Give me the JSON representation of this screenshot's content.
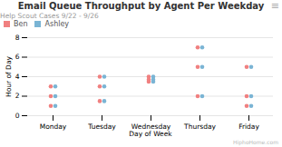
{
  "chart_data": {
    "type": "scatter",
    "title": "Email Queue Throughput by Agent Per Weekday",
    "subtitle": "Help Scout Cases 9/22 - 9/26",
    "xlabel": "Day of Week",
    "ylabel": "Hour of Day",
    "annotations": [
      "HiphoHome.com",
      "≡"
    ],
    "categories": [
      "Monday",
      "Tuesday",
      "Wednesday",
      "Thursday",
      "Friday"
    ],
    "series": [
      {
        "name": "Ben",
        "color": "#f08080",
        "x": [
          "Monday",
          "Monday",
          "Monday",
          "Tuesday",
          "Tuesday",
          "Tuesday",
          "Wednesday",
          "Wednesday",
          "Wednesday",
          "Thursday",
          "Thursday",
          "Thursday",
          "Friday",
          "Friday",
          "Friday"
        ],
        "values": [
          1,
          2,
          3,
          1.5,
          3,
          4,
          3.5,
          4,
          3.7,
          2,
          5,
          7,
          1,
          2,
          5
        ]
      },
      {
        "name": "Ashley",
        "color": "#7ab4d4",
        "x": [
          "Monday",
          "Monday",
          "Monday",
          "Tuesday",
          "Tuesday",
          "Tuesday",
          "Wednesday",
          "Wednesday",
          "Wednesday",
          "Thursday",
          "Thursday",
          "Thursday",
          "Friday",
          "Friday",
          "Friday"
        ],
        "values": [
          1,
          2,
          3,
          1.5,
          3,
          4,
          3.5,
          4,
          3.7,
          2,
          5,
          7,
          1,
          2,
          5
        ]
      }
    ],
    "ylim": [
      0,
      8
    ],
    "yticks": [
      0,
      2,
      4,
      6,
      8
    ],
    "grid": true,
    "legend": "upper left"
  }
}
